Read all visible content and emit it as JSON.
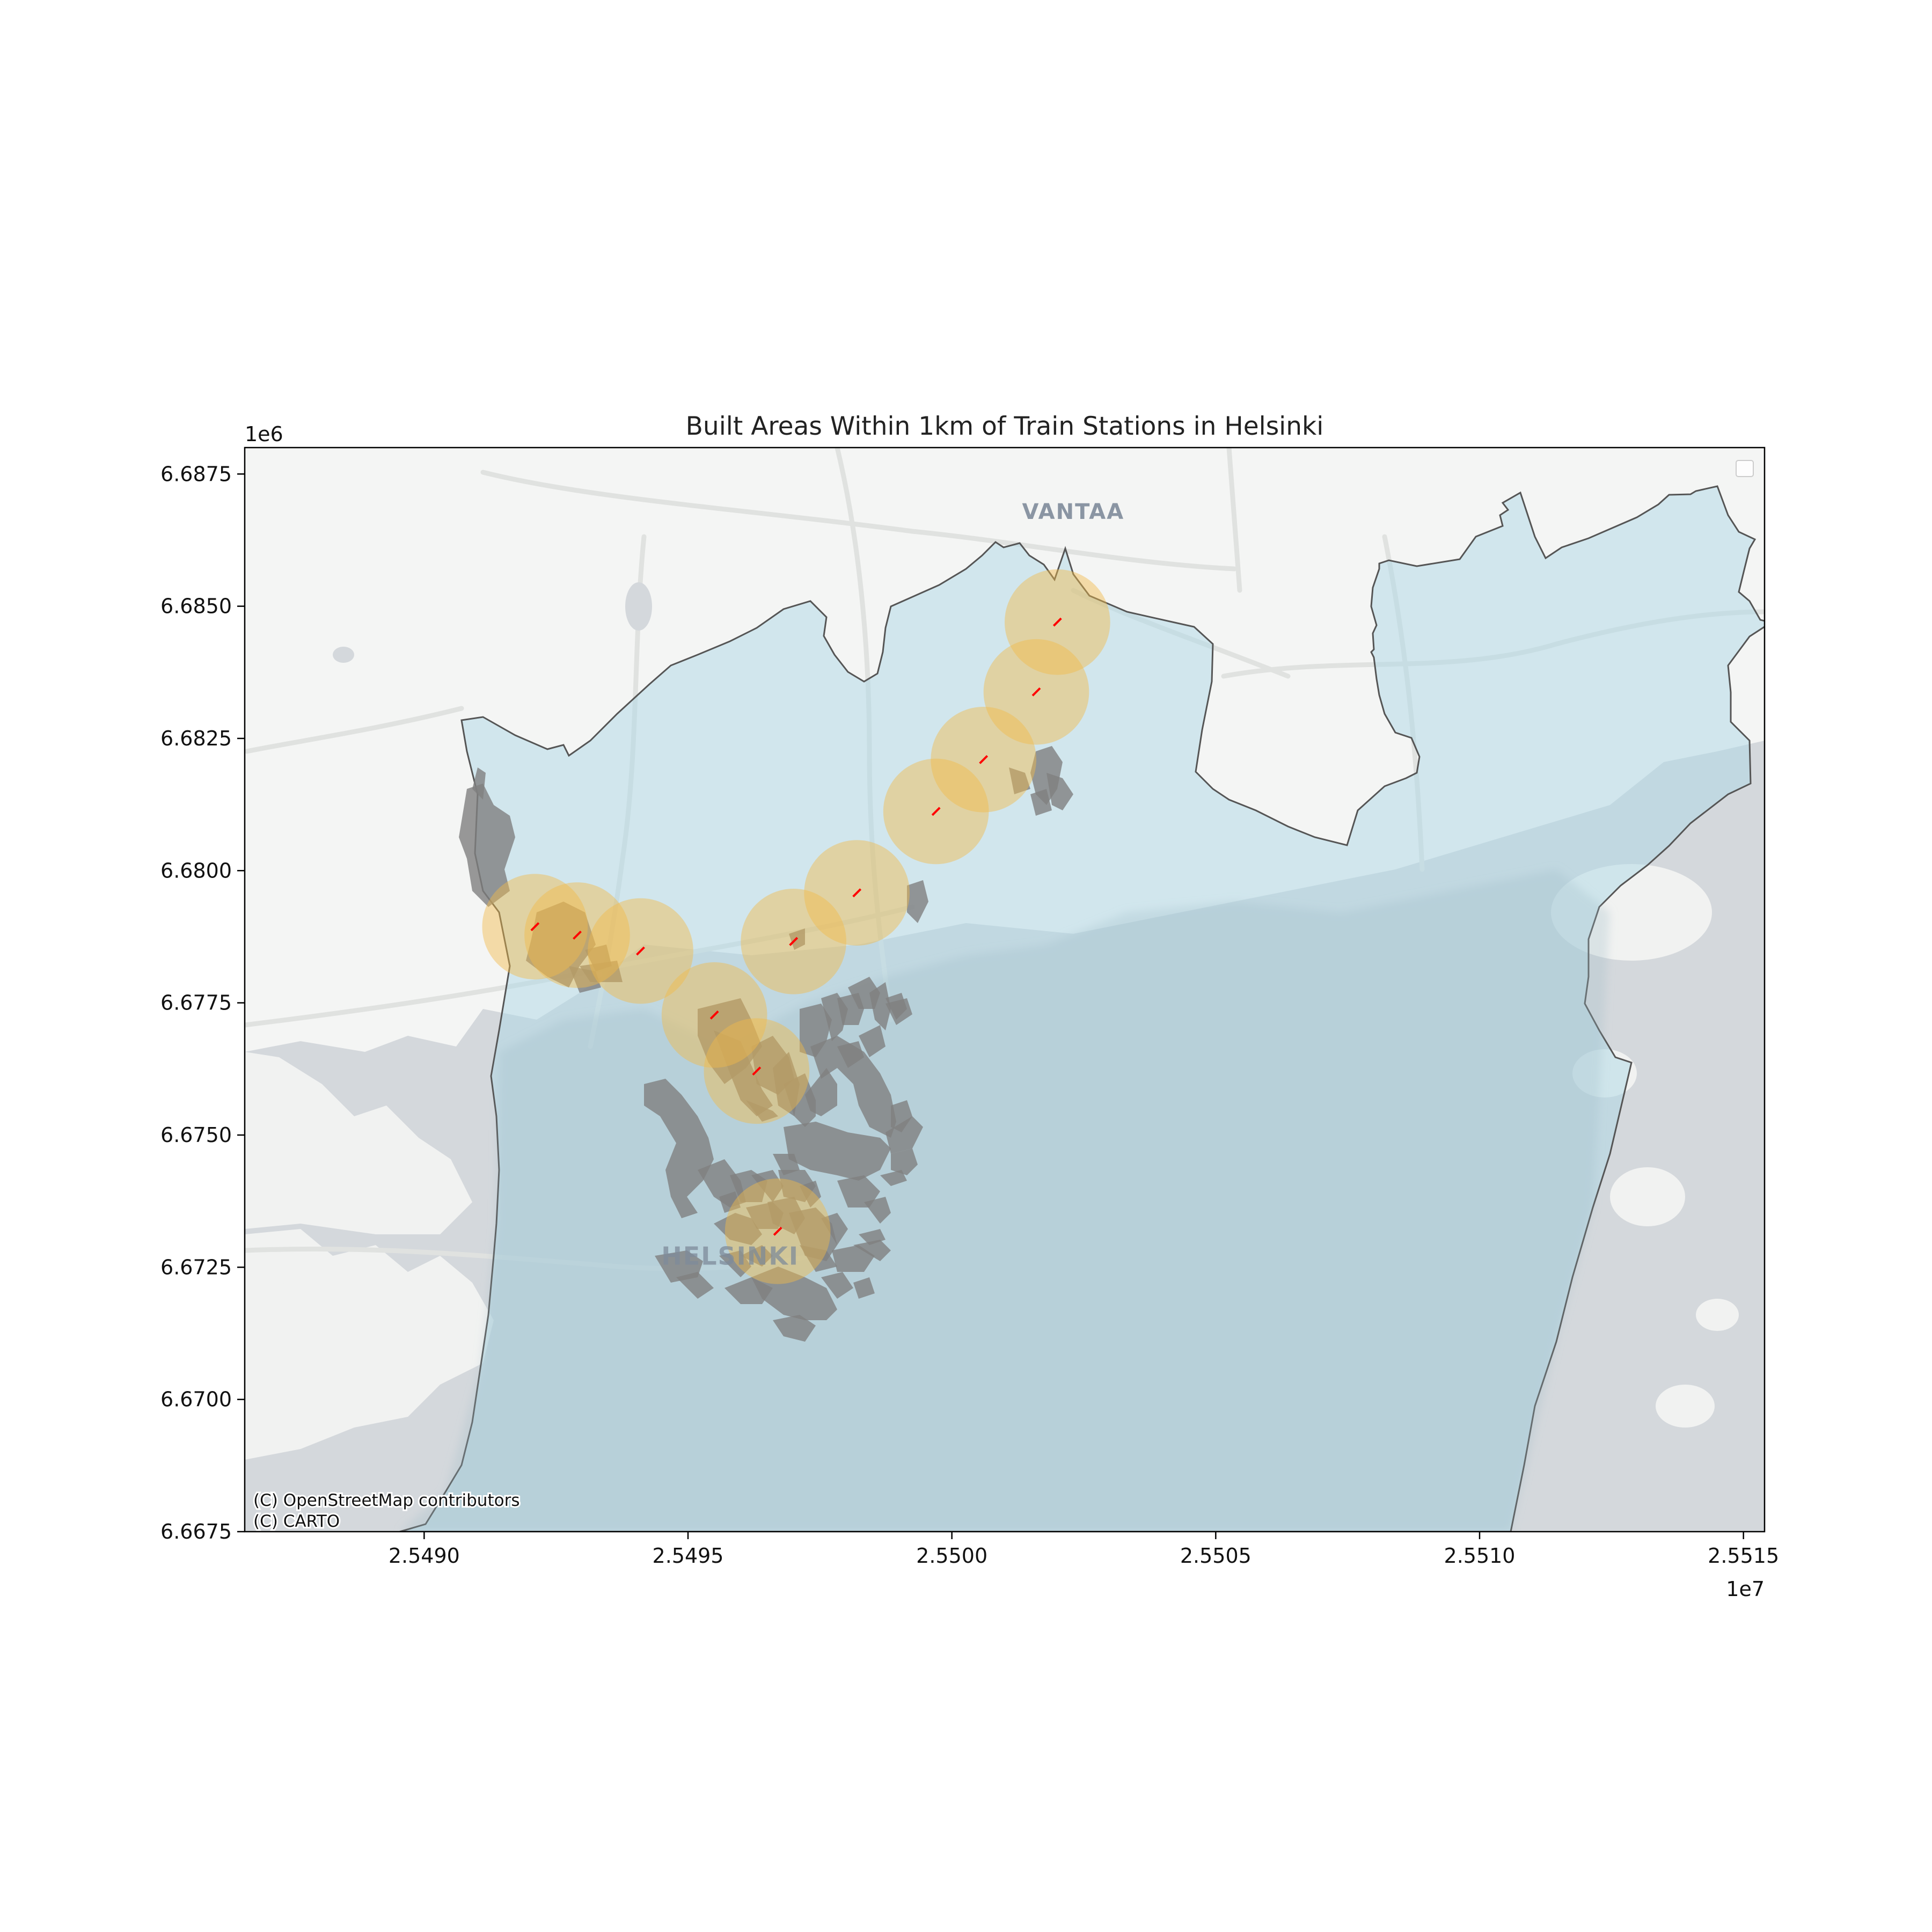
{
  "chart_data": {
    "type": "map",
    "title": "Built Areas Within 1km of Train Stations in Helsinki",
    "x_axis": {
      "offset_label": "1e7",
      "range": [
        2.54866,
        2.55154
      ],
      "ticks": [
        2.549,
        2.5495,
        2.55,
        2.5505,
        2.551,
        2.5515
      ],
      "tick_labels": [
        "2.5490",
        "2.5495",
        "2.5500",
        "2.5505",
        "2.5510",
        "2.5515"
      ]
    },
    "y_axis": {
      "offset_label": "1e6",
      "range": [
        6.6675,
        6.688
      ],
      "ticks": [
        6.6675,
        6.67,
        6.6725,
        6.675,
        6.6775,
        6.68,
        6.6825,
        6.685,
        6.6875
      ],
      "tick_labels": [
        "6.6675",
        "6.6700",
        "6.6725",
        "6.6750",
        "6.6775",
        "6.6800",
        "6.6825",
        "6.6850",
        "6.6875"
      ]
    },
    "place_labels": [
      {
        "name": "VANTAA",
        "x": 2.55023,
        "y": 6.68665
      },
      {
        "name": "HELSINKI",
        "x": 2.54958,
        "y": 6.67255
      }
    ],
    "stations": [
      {
        "x": 2.54921,
        "y": 6.67894,
        "buffer_km": 1
      },
      {
        "x": 2.54929,
        "y": 6.67878,
        "buffer_km": 1
      },
      {
        "x": 2.54941,
        "y": 6.67848,
        "buffer_km": 1
      },
      {
        "x": 2.54955,
        "y": 6.67727,
        "buffer_km": 1
      },
      {
        "x": 2.54963,
        "y": 6.67621,
        "buffer_km": 1
      },
      {
        "x": 2.54967,
        "y": 6.67318,
        "buffer_km": 1
      },
      {
        "x": 2.5497,
        "y": 6.67866,
        "buffer_km": 1
      },
      {
        "x": 2.54982,
        "y": 6.67958,
        "buffer_km": 1
      },
      {
        "x": 2.54997,
        "y": 6.68112,
        "buffer_km": 1
      },
      {
        "x": 2.55006,
        "y": 6.6821,
        "buffer_km": 1
      },
      {
        "x": 2.55016,
        "y": 6.68338,
        "buffer_km": 1
      },
      {
        "x": 2.5502,
        "y": 6.6847,
        "buffer_km": 1
      }
    ],
    "attribution": [
      "(C) OpenStreetMap contributors",
      "(C) CARTO"
    ],
    "legend": "upper right, empty",
    "colors": {
      "district_fill": "#add8e6",
      "district_edge": "#555555",
      "buffer_fill": "#f2bb4a",
      "built_area": "#808080",
      "station_line": "#ff0000",
      "basemap_land": "#f4f5f4",
      "basemap_water": "#d4d8dc"
    }
  }
}
